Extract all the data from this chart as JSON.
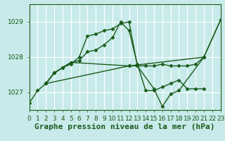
{
  "title": "Graphe pression niveau de la mer (hPa)",
  "bg_color": "#c8eaea",
  "plot_bg_color": "#c8eaea",
  "line_color": "#1a5c1a",
  "grid_color": "#ffffff",
  "label_color": "#1a5c1a",
  "xlabel_color": "#1a5c1a",
  "ylim": [
    1026.5,
    1029.5
  ],
  "xlim": [
    0,
    23
  ],
  "yticks": [
    1027,
    1028,
    1029
  ],
  "xticks": [
    0,
    1,
    2,
    3,
    4,
    5,
    6,
    7,
    8,
    9,
    10,
    11,
    12,
    13,
    14,
    15,
    16,
    17,
    18,
    19,
    20,
    21,
    22,
    23
  ],
  "series": [
    {
      "points": [
        [
          0,
          1026.7
        ],
        [
          1,
          1027.05
        ],
        [
          2,
          1027.25
        ],
        [
          3,
          1027.55
        ],
        [
          4,
          1027.7
        ],
        [
          5,
          1027.8
        ],
        [
          6,
          1028.0
        ],
        [
          7,
          1028.6
        ],
        [
          8,
          1028.65
        ],
        [
          9,
          1028.75
        ],
        [
          10,
          1028.8
        ],
        [
          11,
          1028.95
        ],
        [
          12,
          1029.0
        ],
        [
          13,
          1027.75
        ],
        [
          15,
          1027.1
        ],
        [
          16,
          1026.6
        ],
        [
          17,
          1026.95
        ],
        [
          18,
          1027.05
        ],
        [
          21,
          1028.0
        ],
        [
          23,
          1029.05
        ]
      ]
    },
    {
      "points": [
        [
          2,
          1027.25
        ],
        [
          3,
          1027.55
        ],
        [
          4,
          1027.7
        ],
        [
          5,
          1027.85
        ],
        [
          6,
          1027.9
        ],
        [
          7,
          1028.15
        ],
        [
          8,
          1028.2
        ],
        [
          9,
          1028.35
        ],
        [
          10,
          1028.55
        ],
        [
          11,
          1029.0
        ],
        [
          12,
          1028.75
        ],
        [
          13,
          1027.8
        ],
        [
          14,
          1027.05
        ],
        [
          15,
          1027.05
        ],
        [
          16,
          1027.15
        ],
        [
          17,
          1027.25
        ],
        [
          18,
          1027.35
        ],
        [
          19,
          1027.1
        ],
        [
          20,
          1027.1
        ],
        [
          21,
          1027.1
        ]
      ]
    },
    {
      "points": [
        [
          2,
          1027.25
        ],
        [
          3,
          1027.55
        ],
        [
          4,
          1027.7
        ],
        [
          5,
          1027.85
        ],
        [
          12,
          1027.75
        ],
        [
          13,
          1027.75
        ],
        [
          14,
          1027.75
        ],
        [
          15,
          1027.75
        ],
        [
          16,
          1027.8
        ],
        [
          17,
          1027.75
        ],
        [
          18,
          1027.75
        ],
        [
          19,
          1027.75
        ],
        [
          20,
          1027.8
        ],
        [
          21,
          1028.0
        ]
      ]
    },
    {
      "points": [
        [
          2,
          1027.25
        ],
        [
          12,
          1027.75
        ],
        [
          21,
          1028.0
        ],
        [
          23,
          1029.05
        ]
      ]
    }
  ],
  "fontsize_title": 8,
  "fontsize_ticks": 6.5,
  "marker": "D",
  "markersize": 2.5,
  "linewidth": 1.0
}
